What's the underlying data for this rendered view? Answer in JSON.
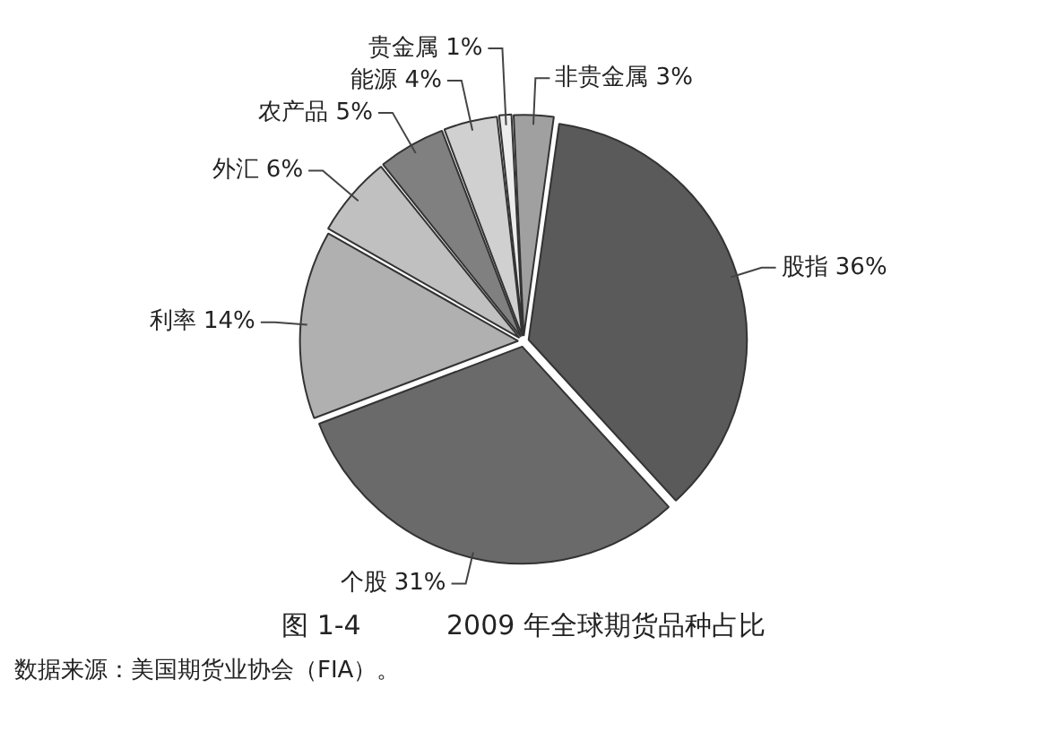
{
  "chart_data": {
    "type": "pie",
    "title": "图 1-4          2009 年全球期货品种占比",
    "annotations": [
      "数据来源：美国期货业协会（FIA）。"
    ],
    "categories": [
      "股指",
      "个股",
      "利率",
      "外汇",
      "农产品",
      "能源",
      "贵金属",
      "非贵金属"
    ],
    "values": [
      36,
      31,
      14,
      6,
      5,
      4,
      1,
      3
    ],
    "value_labels": [
      "36%",
      "31%",
      "14%",
      "6%",
      "5%",
      "4%",
      "1%",
      "3%"
    ],
    "colors": [
      "#5a5a5a",
      "#6a6a6a",
      "#b0b0b0",
      "#c0c0c0",
      "#808080",
      "#d0d0d0",
      "#ececec",
      "#a0a0a0"
    ],
    "legend": false
  }
}
